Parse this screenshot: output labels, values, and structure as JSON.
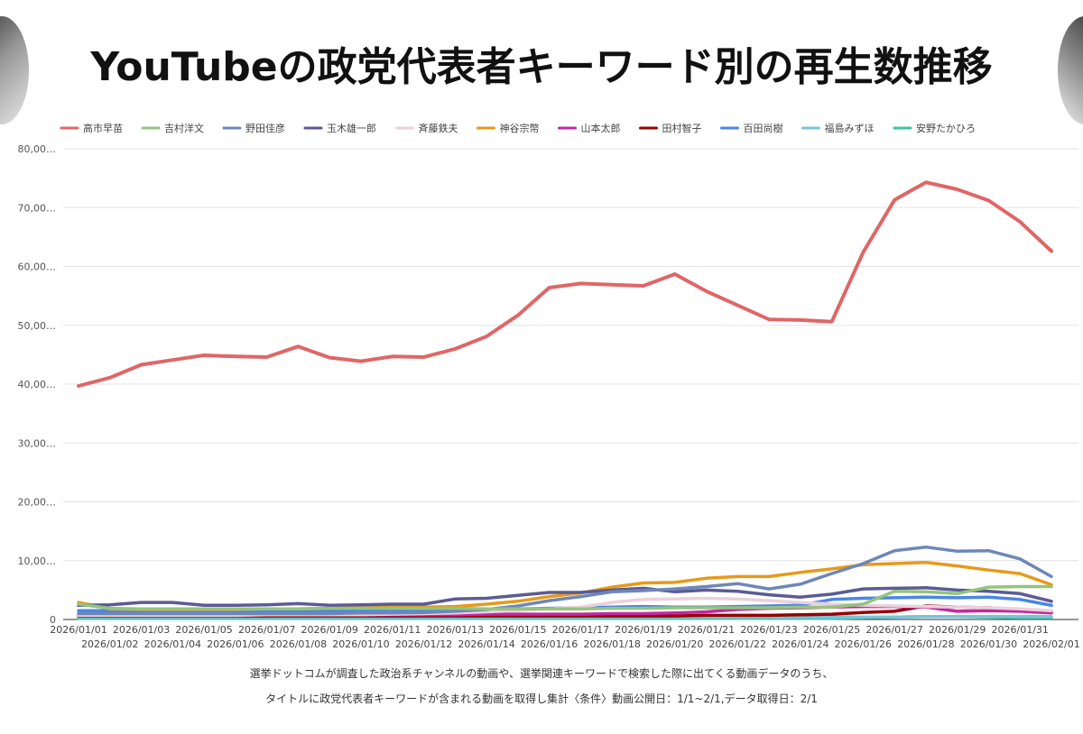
{
  "title": "YouTubeの政党代表者キーワード別の再生数推移",
  "captions": {
    "line1": "選挙ドットコムが調査した政治系チャンネルの動画や、選挙関連キーワードで検索した際に出てくる動画データのうち、",
    "line2": "タイトルに政党代表者キーワードが含まれる動画を取得し集計〈条件〉動画公開日：1/1~2/1,データ取得日：2/1"
  },
  "chart_data": {
    "type": "line",
    "title": "YouTubeの政党代表者キーワード別の再生数推移",
    "xlabel": "",
    "ylabel": "",
    "ylim": [
      0,
      80000
    ],
    "y_ticks": [
      0,
      10000,
      20000,
      30000,
      40000,
      50000,
      60000,
      70000,
      80000
    ],
    "y_tick_labels": [
      "0",
      "10,00…",
      "20,00…",
      "30,00…",
      "40,00…",
      "50,00…",
      "60,00…",
      "70,00…",
      "80,00…"
    ],
    "grid": true,
    "legend": "top-left",
    "categories": [
      "2026/01/01",
      "2026/01/02",
      "2026/01/03",
      "2026/01/04",
      "2026/01/05",
      "2026/01/06",
      "2026/01/07",
      "2026/01/08",
      "2026/01/09",
      "2026/01/10",
      "2026/01/11",
      "2026/01/12",
      "2026/01/13",
      "2026/01/14",
      "2026/01/15",
      "2026/01/16",
      "2026/01/17",
      "2026/01/18",
      "2026/01/19",
      "2026/01/20",
      "2026/01/21",
      "2026/01/22",
      "2026/01/23",
      "2026/01/24",
      "2026/01/25",
      "2026/01/26",
      "2026/01/27",
      "2026/01/28",
      "2026/01/29",
      "2026/01/30",
      "2026/01/31",
      "2026/02/01"
    ],
    "series": [
      {
        "name": "高市早苗",
        "color": "#e06666",
        "values": [
          39700,
          41100,
          43300,
          44100,
          44900,
          44700,
          44600,
          46400,
          44500,
          43900,
          44700,
          44600,
          46000,
          48100,
          51700,
          56400,
          57100,
          56900,
          56700,
          58700,
          55800,
          53400,
          51000,
          50900,
          50600,
          62400,
          71300,
          74300,
          73100,
          71200,
          67600,
          62600
        ]
      },
      {
        "name": "吉村洋文",
        "color": "#93c47d",
        "values": [
          2600,
          1900,
          1800,
          1800,
          1800,
          1800,
          1800,
          1800,
          1900,
          1900,
          1900,
          1900,
          1900,
          1800,
          1800,
          1800,
          1800,
          1900,
          1900,
          2000,
          2000,
          2000,
          2000,
          2100,
          2100,
          2600,
          4800,
          4700,
          4400,
          5500,
          5600,
          5600
        ]
      },
      {
        "name": "野田佳彦",
        "color": "#6d87b8",
        "values": [
          1000,
          1000,
          1000,
          1000,
          1000,
          1000,
          1000,
          1000,
          1000,
          1100,
          1100,
          1200,
          1400,
          1700,
          2300,
          3200,
          3900,
          4700,
          4900,
          5200,
          5600,
          6100,
          5200,
          6000,
          7800,
          9500,
          11700,
          12300,
          11600,
          11700,
          10300,
          7300
        ]
      },
      {
        "name": "玉木雄一郎",
        "color": "#5b5b95",
        "values": [
          2400,
          2500,
          2900,
          2900,
          2400,
          2400,
          2500,
          2700,
          2400,
          2500,
          2600,
          2600,
          3500,
          3600,
          4100,
          4600,
          4600,
          5000,
          5300,
          4700,
          5000,
          4800,
          4200,
          3800,
          4300,
          5200,
          5300,
          5400,
          5000,
          4800,
          4400,
          3100
        ]
      },
      {
        "name": "斉藤鉄夫",
        "color": "#ead1dc",
        "values": [
          700,
          700,
          700,
          700,
          700,
          700,
          800,
          800,
          800,
          800,
          900,
          1000,
          1100,
          1300,
          1500,
          1800,
          2100,
          2900,
          3400,
          3500,
          3600,
          3500,
          3200,
          2900,
          2600,
          2400,
          2300,
          2200,
          2100,
          2000,
          1800,
          1500
        ]
      },
      {
        "name": "神谷宗幣",
        "color": "#e69a1a",
        "values": [
          2900,
          1800,
          1700,
          1700,
          1700,
          1700,
          1800,
          1800,
          1900,
          2000,
          2100,
          2100,
          2200,
          2600,
          3100,
          3900,
          4500,
          5500,
          6200,
          6300,
          7000,
          7300,
          7300,
          8000,
          8600,
          9300,
          9500,
          9700,
          9100,
          8400,
          7800,
          5900
        ]
      },
      {
        "name": "山本太郎",
        "color": "#c427a5",
        "values": [
          800,
          800,
          800,
          800,
          800,
          800,
          800,
          800,
          800,
          800,
          800,
          800,
          800,
          900,
          900,
          900,
          900,
          1000,
          1000,
          1100,
          1300,
          1700,
          1900,
          2000,
          2100,
          2200,
          2200,
          2100,
          1400,
          1500,
          1400,
          1100
        ]
      },
      {
        "name": "田村智子",
        "color": "#990000",
        "values": [
          600,
          600,
          600,
          600,
          600,
          600,
          600,
          600,
          600,
          600,
          600,
          600,
          600,
          600,
          600,
          600,
          600,
          600,
          600,
          600,
          700,
          700,
          700,
          800,
          900,
          1200,
          1400,
          2300,
          2100,
          2000,
          1700,
          1300
        ]
      },
      {
        "name": "百田尚樹",
        "color": "#4a86e8",
        "values": [
          1500,
          1500,
          1500,
          1500,
          1500,
          1500,
          1500,
          1500,
          1500,
          1500,
          1500,
          1600,
          1600,
          1700,
          1800,
          1900,
          2000,
          2100,
          2200,
          2100,
          2100,
          2200,
          2300,
          2400,
          3400,
          3600,
          3700,
          3800,
          3700,
          3800,
          3400,
          2400
        ]
      },
      {
        "name": "福島みずほ",
        "color": "#76c5d9",
        "values": [
          400,
          400,
          400,
          400,
          400,
          400,
          400,
          400,
          400,
          400,
          400,
          400,
          400,
          400,
          400,
          400,
          400,
          400,
          400,
          400,
          400,
          400,
          400,
          400,
          400,
          400,
          400,
          500,
          500,
          500,
          500,
          500
        ]
      },
      {
        "name": "安野たかひろ",
        "color": "#3fc4a0",
        "values": [
          200,
          200,
          200,
          200,
          200,
          200,
          200,
          200,
          200,
          200,
          200,
          200,
          200,
          200,
          200,
          200,
          200,
          200,
          200,
          200,
          200,
          200,
          200,
          200,
          200,
          300,
          400,
          500,
          500,
          400,
          300,
          300
        ]
      }
    ]
  }
}
